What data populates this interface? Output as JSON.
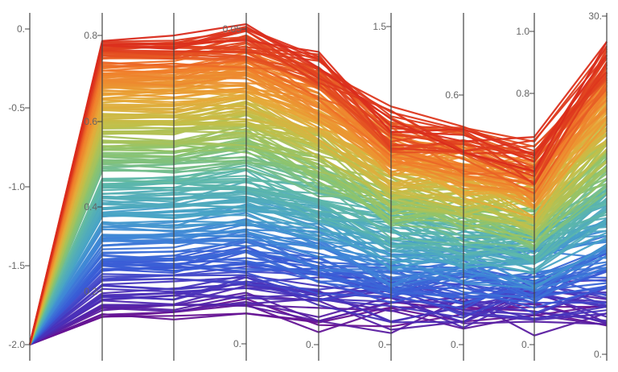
{
  "chart_data": {
    "type": "parallel-coordinates",
    "title": "",
    "axes": [
      {
        "name": "",
        "ticks": [
          {
            "label": "0.",
            "value": 0
          },
          {
            "label": "-0.5",
            "value": -0.5
          },
          {
            "label": "-1.0",
            "value": -1.0
          },
          {
            "label": "-1.5",
            "value": -1.5
          },
          {
            "label": "-2.0",
            "value": -2.0
          }
        ],
        "range": [
          -2.0,
          0.0
        ],
        "line_visible": false
      },
      {
        "name": "",
        "ticks": [
          {
            "label": "0.8",
            "value": 0.8
          },
          {
            "label": "0.6",
            "value": 0.6
          },
          {
            "label": "0.4",
            "value": 0.4
          },
          {
            "label": "0.2",
            "value": 0.2
          }
        ],
        "range": [
          0.12,
          0.82
        ]
      },
      {
        "name": "",
        "ticks": [],
        "range": [
          0.0,
          1.0
        ]
      },
      {
        "name": "",
        "ticks": [
          {
            "label": "0.05",
            "value": 0.05
          },
          {
            "label": "0.",
            "value": 0.0
          }
        ],
        "range": [
          0.0,
          0.05
        ]
      },
      {
        "name": "",
        "ticks": [
          {
            "label": "0.",
            "value": 0.0
          }
        ],
        "range": [
          0.0,
          1.0
        ]
      },
      {
        "name": "",
        "ticks": [
          {
            "label": "1.5",
            "value": 1.5
          },
          {
            "label": "0.",
            "value": 0.0
          }
        ],
        "range": [
          0.0,
          1.5
        ]
      },
      {
        "name": "",
        "ticks": [
          {
            "label": "0.6",
            "value": 0.6
          },
          {
            "label": "0.",
            "value": 0.0
          }
        ],
        "range": [
          0.0,
          0.7
        ]
      },
      {
        "name": "",
        "ticks": [
          {
            "label": "1.0",
            "value": 1.0
          },
          {
            "label": "0.8",
            "value": 0.8
          },
          {
            "label": "0.",
            "value": 0.0
          }
        ],
        "range": [
          0.0,
          1.0
        ]
      },
      {
        "name": "",
        "ticks": [
          {
            "label": "30.",
            "value": 30
          },
          {
            "label": "0.",
            "value": 0
          }
        ],
        "range": [
          0,
          30
        ]
      }
    ],
    "colormap": [
      "#6a0f8e",
      "#4a2fb8",
      "#3a5ad6",
      "#3f86d8",
      "#4aa6c4",
      "#5fb8a8",
      "#8cc46e",
      "#c0c04a",
      "#e8a838",
      "#f07a2a",
      "#d92a1c"
    ],
    "series_count": 260,
    "value_range": [
      0.12,
      0.82
    ]
  }
}
